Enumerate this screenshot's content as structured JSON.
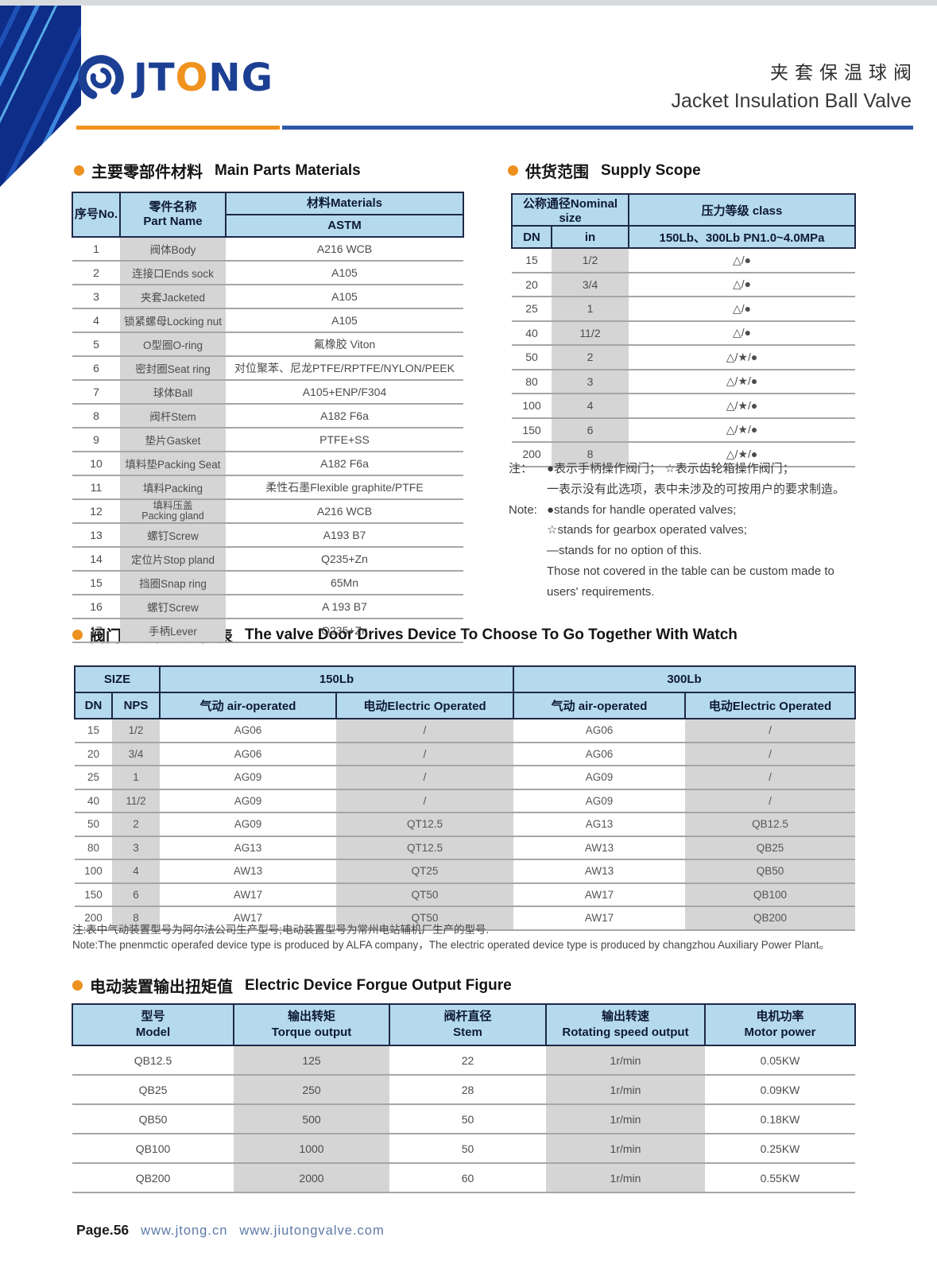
{
  "header": {
    "logo_jt": "JT",
    "logo_o": "O",
    "logo_ng": "NG",
    "title_cn": "夹套保温球阀",
    "title_en": "Jacket Insulation Ball Valve"
  },
  "colors": {
    "accent_orange": "#f0921e",
    "brand_navy": "#1c3f94",
    "table_header_blue": "#b5daee",
    "shaded_column_gray": "#d5d5d5"
  },
  "materials": {
    "title_cn": "主要零部件材料",
    "title_en": "Main Parts Materials",
    "table": {
      "col_no": "序号No.",
      "col_part_cn": "零件名称",
      "col_part_en": "Part Name",
      "col_material": "材料Materials",
      "col_astm": "ASTM",
      "rows": [
        {
          "no": "1",
          "part": "阀体Body",
          "mat": "A216 WCB"
        },
        {
          "no": "2",
          "part": "连接口Ends sock",
          "mat": "A105"
        },
        {
          "no": "3",
          "part": "夹套Jacketed",
          "mat": "A105"
        },
        {
          "no": "4",
          "part": "锁紧螺母Locking nut",
          "mat": "A105"
        },
        {
          "no": "5",
          "part": "O型圈O-ring",
          "mat": "氟橡胶 Viton"
        },
        {
          "no": "6",
          "part": "密封圈Seat ring",
          "mat": "对位聚苯、尼龙PTFE/RPTFE/NYLON/PEEK"
        },
        {
          "no": "7",
          "part": "球体Ball",
          "mat": "A105+ENP/F304"
        },
        {
          "no": "8",
          "part": "阀杆Stem",
          "mat": "A182 F6a"
        },
        {
          "no": "9",
          "part": "垫片Gasket",
          "mat": "PTFE+SS"
        },
        {
          "no": "10",
          "part": "填料垫Packing Seat",
          "mat": "A182 F6a"
        },
        {
          "no": "11",
          "part": "填料Packing",
          "mat": "柔性石墨Flexible graphite/PTFE"
        },
        {
          "no": "12",
          "part": "填料压盖",
          "part2": "Packing gland",
          "mat": "A216 WCB"
        },
        {
          "no": "13",
          "part": "螺钉Screw",
          "mat": "A193 B7"
        },
        {
          "no": "14",
          "part": "定位片Stop pland",
          "mat": "Q235+Zn"
        },
        {
          "no": "15",
          "part": "挡圈Snap ring",
          "mat": "65Mn"
        },
        {
          "no": "16",
          "part": "螺钉Screw",
          "mat": "A 193 B7"
        },
        {
          "no": "17",
          "part": "手柄Lever",
          "mat": "Q235+Zn"
        }
      ]
    }
  },
  "supply": {
    "title_cn": "供货范围",
    "title_en": "Supply Scope",
    "table": {
      "col_nominal": "公称通径Nominal size",
      "col_class": "压力等级 class",
      "col_dn": "DN",
      "col_in": "in",
      "col_pressure": "150Lb、300Lb PN1.0~4.0MPa",
      "rows": [
        {
          "dn": "15",
          "inch": "1/2",
          "cls": "△/●"
        },
        {
          "dn": "20",
          "inch": "3/4",
          "cls": "△/●"
        },
        {
          "dn": "25",
          "inch": "1",
          "cls": "△/●"
        },
        {
          "dn": "40",
          "inch": "11/2",
          "cls": "△/●"
        },
        {
          "dn": "50",
          "inch": "2",
          "cls": "△/★/●"
        },
        {
          "dn": "80",
          "inch": "3",
          "cls": "△/★/●"
        },
        {
          "dn": "100",
          "inch": "4",
          "cls": "△/★/●"
        },
        {
          "dn": "150",
          "inch": "6",
          "cls": "△/★/●"
        },
        {
          "dn": "200",
          "inch": "8",
          "cls": "△/★/●"
        }
      ]
    },
    "note": {
      "lines": [
        {
          "label": "注：",
          "text": "●表示手柄操作阀门； ☆表示齿轮箱操作阀门；"
        },
        {
          "label": "",
          "text": "一表示没有此选项，表中未涉及的可按用户的要求制造。"
        },
        {
          "label": "Note:",
          "text": "●stands for handle operated valves;"
        },
        {
          "label": "",
          "text": "☆stands for gearbox operated valves;"
        },
        {
          "label": "",
          "text": "—stands for no option of this."
        },
        {
          "label": "",
          "text": "Those not covered in the table can be custom made to"
        },
        {
          "label": "",
          "text": "users' requirements."
        }
      ]
    }
  },
  "drives": {
    "title_cn": "阀门驱动装置选配表",
    "title_en": "The valve Door Drives Device To Choose To Go Together With Watch",
    "table": {
      "col_size": "SIZE",
      "col_150": "150Lb",
      "col_300": "300Lb",
      "col_dn": "DN",
      "col_nps": "NPS",
      "col_air": "气动 air-operated",
      "col_elec": "电动Electric Operated",
      "rows": [
        {
          "dn": "15",
          "nps": "1/2",
          "air150": "AG06",
          "elec150": "/",
          "air300": "AG06",
          "elec300": "/"
        },
        {
          "dn": "20",
          "nps": "3/4",
          "air150": "AG06",
          "elec150": "/",
          "air300": "AG06",
          "elec300": "/"
        },
        {
          "dn": "25",
          "nps": "1",
          "air150": "AG09",
          "elec150": "/",
          "air300": "AG09",
          "elec300": "/"
        },
        {
          "dn": "40",
          "nps": "11/2",
          "air150": "AG09",
          "elec150": "/",
          "air300": "AG09",
          "elec300": "/"
        },
        {
          "dn": "50",
          "nps": "2",
          "air150": "AG09",
          "elec150": "QT12.5",
          "air300": "AG13",
          "elec300": "QB12.5"
        },
        {
          "dn": "80",
          "nps": "3",
          "air150": "AG13",
          "elec150": "QT12.5",
          "air300": "AW13",
          "elec300": "QB25"
        },
        {
          "dn": "100",
          "nps": "4",
          "air150": "AW13",
          "elec150": "QT25",
          "air300": "AW13",
          "elec300": "QB50"
        },
        {
          "dn": "150",
          "nps": "6",
          "air150": "AW17",
          "elec150": "QT50",
          "air300": "AW17",
          "elec300": "QB100"
        },
        {
          "dn": "200",
          "nps": "8",
          "air150": "AW17",
          "elec150": "QT50",
          "air300": "AW17",
          "elec300": "QB200"
        }
      ]
    },
    "notes": [
      "注:表中气动装置型号为阿尔法公司生产型号;电动装置型号为常州电站辅机厂生产的型号.",
      "Note:The pnenmctic operafed device type is produced by ALFA company，The electric operated device  type is produced by changzhou Auxiliary Power Plant。"
    ]
  },
  "torque": {
    "title_cn": "电动装置输出扭矩值",
    "title_en": "Electric Device Forgue Output Figure",
    "table": {
      "cols": [
        {
          "cn": "型号",
          "en": "Model"
        },
        {
          "cn": "输出转矩",
          "en": "Torque output"
        },
        {
          "cn": "阀杆直径",
          "en": "Stem"
        },
        {
          "cn": "输出转速",
          "en": "Rotating speed output"
        },
        {
          "cn": "电机功率",
          "en": "Motor power"
        }
      ],
      "rows": [
        {
          "model": "QB12.5",
          "torque": "125",
          "stem": "22",
          "speed": "1r/min",
          "power": "0.05KW"
        },
        {
          "model": "QB25",
          "torque": "250",
          "stem": "28",
          "speed": "1r/min",
          "power": "0.09KW"
        },
        {
          "model": "QB50",
          "torque": "500",
          "stem": "50",
          "speed": "1r/min",
          "power": "0.18KW"
        },
        {
          "model": "QB100",
          "torque": "1000",
          "stem": "50",
          "speed": "1r/min",
          "power": "0.25KW"
        },
        {
          "model": "QB200",
          "torque": "2000",
          "stem": "60",
          "speed": "1r/min",
          "power": "0.55KW"
        }
      ]
    }
  },
  "footer": {
    "page": "Page.56",
    "url1": "www.jtong.cn",
    "url2": "www.jiutongvalve.com"
  }
}
